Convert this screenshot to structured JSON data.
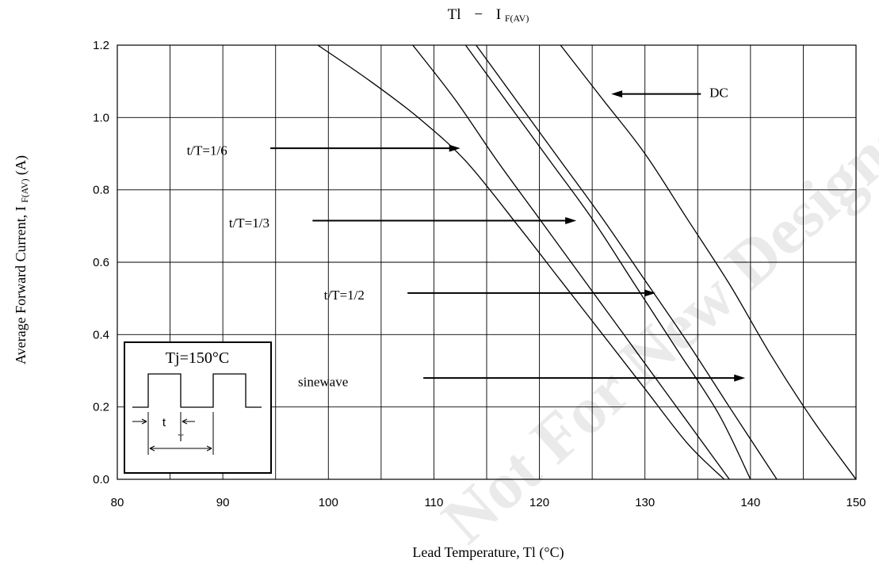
{
  "chart_data": {
    "type": "line",
    "title_main": "Tl",
    "title_dash": "−",
    "title_sym": "I",
    "title_sub": "F(AV)",
    "xlabel": "Lead Temperature, Tl (°C)",
    "ylabel_main": "Average Forward Current, I",
    "ylabel_sub": "F(AV)",
    "ylabel_unit": " (A)",
    "xlim": [
      80,
      150
    ],
    "ylim": [
      0,
      1.2
    ],
    "x_ticks": [
      "80",
      "90",
      "100",
      "110",
      "120",
      "130",
      "140",
      "150"
    ],
    "y_ticks": [
      "0.0",
      "0.2",
      "0.4",
      "0.6",
      "0.8",
      "1.0",
      "1.2"
    ],
    "x_grid_step": 5,
    "y_grid_step": 0.2,
    "grid": true,
    "series": [
      {
        "name": "t/T=1/6",
        "points": [
          [
            99,
            1.2
          ],
          [
            104,
            1.1
          ],
          [
            108.5,
            1.0
          ],
          [
            113,
            0.88
          ],
          [
            118,
            0.7
          ],
          [
            122,
            0.55
          ],
          [
            126,
            0.4
          ],
          [
            130,
            0.25
          ],
          [
            134,
            0.1
          ],
          [
            137.5,
            0.0
          ]
        ]
      },
      {
        "name": "t/T=1/3",
        "points": [
          [
            108,
            1.2
          ],
          [
            112,
            1.05
          ],
          [
            116,
            0.88
          ],
          [
            120,
            0.72
          ],
          [
            124,
            0.56
          ],
          [
            128,
            0.4
          ],
          [
            132,
            0.24
          ],
          [
            135,
            0.12
          ],
          [
            138,
            0.0
          ]
        ]
      },
      {
        "name": "t/T=1/2",
        "points": [
          [
            113,
            1.2
          ],
          [
            117,
            1.04
          ],
          [
            121,
            0.88
          ],
          [
            125,
            0.72
          ],
          [
            129,
            0.54
          ],
          [
            133,
            0.36
          ],
          [
            137,
            0.18
          ],
          [
            140,
            0.0
          ]
        ]
      },
      {
        "name": "sinewave",
        "points": [
          [
            114,
            1.2
          ],
          [
            118,
            1.04
          ],
          [
            122,
            0.88
          ],
          [
            126,
            0.72
          ],
          [
            130,
            0.55
          ],
          [
            134,
            0.38
          ],
          [
            138,
            0.2
          ],
          [
            142.5,
            0.0
          ]
        ]
      },
      {
        "name": "DC",
        "points": [
          [
            122,
            1.2
          ],
          [
            126,
            1.05
          ],
          [
            130,
            0.9
          ],
          [
            134,
            0.72
          ],
          [
            138,
            0.54
          ],
          [
            142,
            0.34
          ],
          [
            146,
            0.16
          ],
          [
            150,
            0.0
          ]
        ]
      }
    ],
    "annotations": [
      {
        "label": "DC",
        "text_at": [
          137,
          1.07
        ],
        "arrow_from": [
          135.3,
          1.065
        ],
        "arrow_to": [
          126.8,
          1.065
        ]
      },
      {
        "label": "t/T=1/6",
        "text_at": [
          88.5,
          0.91
        ],
        "arrow_from": [
          94.5,
          0.915
        ],
        "arrow_to": [
          112.5,
          0.915
        ]
      },
      {
        "label": "t/T=1/3",
        "text_at": [
          92.5,
          0.71
        ],
        "arrow_from": [
          98.5,
          0.715
        ],
        "arrow_to": [
          123.5,
          0.715
        ]
      },
      {
        "label": "t/T=1/2",
        "text_at": [
          101.5,
          0.51
        ],
        "arrow_from": [
          107.5,
          0.515
        ],
        "arrow_to": [
          131,
          0.515
        ]
      },
      {
        "label": "sinewave",
        "text_at": [
          99.5,
          0.27
        ],
        "arrow_from": [
          109,
          0.28
        ],
        "arrow_to": [
          139.5,
          0.28
        ]
      }
    ]
  },
  "inset": {
    "label": "Tj=150°C",
    "t_label": "t",
    "T_label": "T"
  },
  "watermark": "Not For New Designs"
}
